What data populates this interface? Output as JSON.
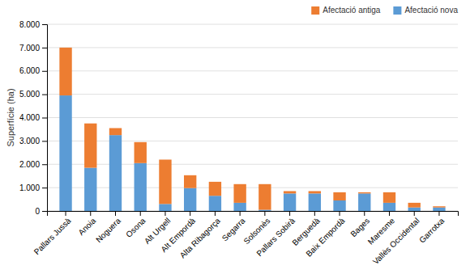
{
  "chart_data": {
    "type": "bar",
    "stacked": true,
    "categories": [
      "Pallars Jussà",
      "Anoia",
      "Noguera",
      "Osona",
      "Alt Urgell",
      "Alt Empordà",
      "Alta Ribagorça",
      "Segarra",
      "Solsonès",
      "Pallars Sobirà",
      "Berguedà",
      "Baix Empordà",
      "Bages",
      "Maresme",
      "Vallès Occidental",
      "Garrotxa"
    ],
    "series": [
      {
        "name": "Afectació nova",
        "color": "#5B9BD5",
        "values": [
          4950,
          1850,
          3250,
          2050,
          300,
          980,
          650,
          350,
          50,
          750,
          750,
          450,
          750,
          350,
          150,
          150
        ]
      },
      {
        "name": "Afectació antiga",
        "color": "#ED7D31",
        "values": [
          2050,
          1900,
          300,
          900,
          1900,
          550,
          600,
          800,
          1100,
          100,
          100,
          350,
          50,
          450,
          200,
          50
        ]
      }
    ],
    "ylabel": "Superfície (ha)",
    "ylim": [
      0,
      8000
    ],
    "yticks": [
      0,
      {
        "value": 1000,
        "label": "1.000"
      },
      {
        "value": 2000,
        "label": "2.000"
      },
      {
        "value": 3000,
        "label": "3.000"
      },
      {
        "value": 4000,
        "label": "4.000"
      },
      {
        "value": 5000,
        "label": "5.000"
      },
      {
        "value": 6000,
        "label": "6.000"
      },
      {
        "value": 7000,
        "label": "7.000"
      },
      {
        "value": 8000,
        "label": "8.000"
      }
    ],
    "grid": true,
    "legend": "upper right"
  }
}
